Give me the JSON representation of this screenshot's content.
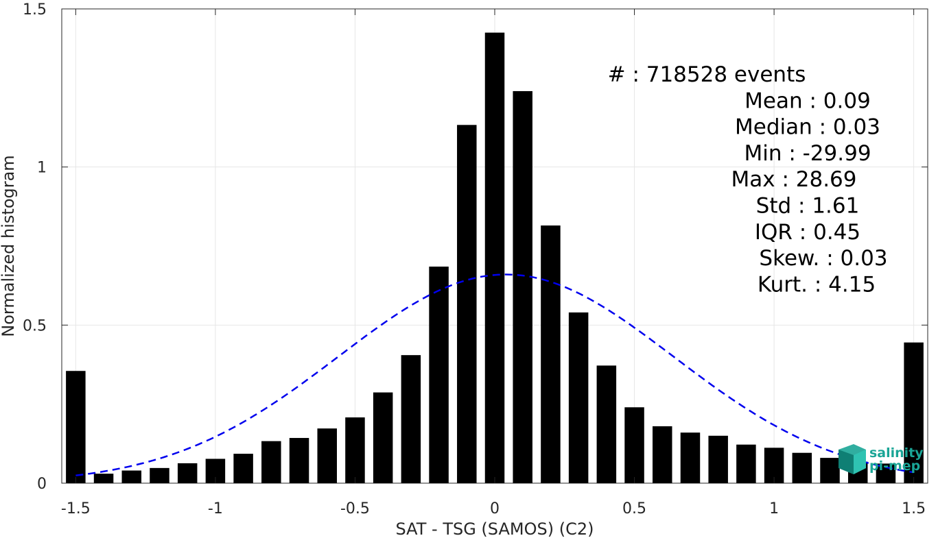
{
  "chart_data": {
    "type": "bar",
    "title": "",
    "xlabel": "SAT - TSG (SAMOS) (C2)",
    "ylabel": "Normalized histogram",
    "xlim": [
      -1.55,
      1.55
    ],
    "ylim": [
      0,
      1.5
    ],
    "xticks": [
      -1.5,
      -1,
      -0.5,
      0,
      0.5,
      1,
      1.5
    ],
    "xtick_labels": [
      "-1.5",
      "-1",
      "-0.5",
      "0",
      "0.5",
      "1",
      "1.5"
    ],
    "yticks": [
      0,
      0.5,
      1,
      1.5
    ],
    "ytick_labels": [
      "0",
      "0.5",
      "1",
      "1.5"
    ],
    "grid": true,
    "bar_color": "#000000",
    "bars": {
      "x": [
        -1.5,
        -1.4,
        -1.3,
        -1.2,
        -1.1,
        -1.0,
        -0.9,
        -0.8,
        -0.7,
        -0.6,
        -0.5,
        -0.4,
        -0.3,
        -0.2,
        -0.1,
        0.0,
        0.1,
        0.2,
        0.3,
        0.4,
        0.5,
        0.6,
        0.7,
        0.8,
        0.9,
        1.0,
        1.1,
        1.2,
        1.3,
        1.4,
        1.5
      ],
      "values": [
        0.355,
        0.03,
        0.04,
        0.048,
        0.063,
        0.077,
        0.093,
        0.133,
        0.143,
        0.173,
        0.208,
        0.287,
        0.405,
        0.685,
        1.133,
        1.425,
        1.24,
        0.815,
        0.54,
        0.372,
        0.24,
        0.18,
        0.16,
        0.15,
        0.122,
        0.112,
        0.096,
        0.08,
        0.068,
        0.062,
        0.445
      ]
    },
    "fit_curve": {
      "style": "dashed",
      "color": "#0000ee",
      "distribution": "normal",
      "mean": 0.04,
      "std": 0.6,
      "peak": 0.66
    },
    "annotations": [
      "#  : 718528 events",
      "Mean : 0.09",
      "Median : 0.03",
      "Min : -29.99",
      "Max : 28.69",
      "Std : 1.61",
      "IQR : 0.45",
      "Skew. : 0.03",
      "Kurt. : 4.15"
    ]
  },
  "logo": {
    "line1": "salinity",
    "line2": "pi-mep",
    "color": "#1aa596"
  }
}
